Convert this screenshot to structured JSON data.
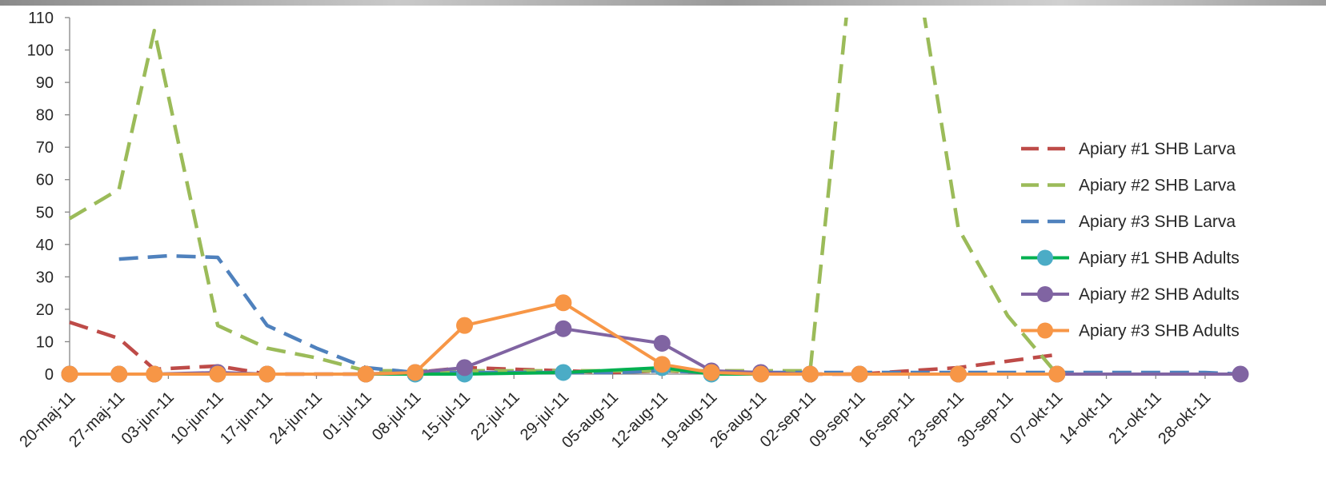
{
  "chart_data": {
    "type": "line",
    "title": "",
    "xlabel": "",
    "ylabel": "",
    "ylim": [
      0,
      110
    ],
    "yticks": [
      "0",
      "10",
      "20",
      "30",
      "40",
      "50",
      "60",
      "70",
      "80",
      "90",
      "100",
      "110"
    ],
    "xlim": [
      "2011-05-20",
      "2011-11-02"
    ],
    "xticks": [
      {
        "date": "2011-05-20",
        "label": "20-maj-11"
      },
      {
        "date": "2011-05-27",
        "label": "27-maj-11"
      },
      {
        "date": "2011-06-03",
        "label": "03-jun-11"
      },
      {
        "date": "2011-06-10",
        "label": "10-jun-11"
      },
      {
        "date": "2011-06-17",
        "label": "17-jun-11"
      },
      {
        "date": "2011-06-24",
        "label": "24-jun-11"
      },
      {
        "date": "2011-07-01",
        "label": "01-jul-11"
      },
      {
        "date": "2011-07-08",
        "label": "08-jul-11"
      },
      {
        "date": "2011-07-15",
        "label": "15-jul-11"
      },
      {
        "date": "2011-07-22",
        "label": "22-jul-11"
      },
      {
        "date": "2011-07-29",
        "label": "29-jul-11"
      },
      {
        "date": "2011-08-05",
        "label": "05-aug-11"
      },
      {
        "date": "2011-08-12",
        "label": "12-aug-11"
      },
      {
        "date": "2011-08-19",
        "label": "19-aug-11"
      },
      {
        "date": "2011-08-26",
        "label": "26-aug-11"
      },
      {
        "date": "2011-09-02",
        "label": "02-sep-11"
      },
      {
        "date": "2011-09-09",
        "label": "09-sep-11"
      },
      {
        "date": "2011-09-16",
        "label": "16-sep-11"
      },
      {
        "date": "2011-09-23",
        "label": "23-sep-11"
      },
      {
        "date": "2011-09-30",
        "label": "30-sep-11"
      },
      {
        "date": "2011-10-07",
        "label": "07-okt-11"
      },
      {
        "date": "2011-10-14",
        "label": "14-okt-11"
      },
      {
        "date": "2011-10-21",
        "label": "21-okt-11"
      },
      {
        "date": "2011-10-28",
        "label": "28-okt-11"
      }
    ],
    "grid": false,
    "legend_position": "right",
    "series": [
      {
        "name": "Apiary #1 SHB Larva",
        "color": "#be4b48",
        "style": "dashed",
        "markers": false,
        "points": [
          {
            "x": "2011-05-20",
            "y": 16
          },
          {
            "x": "2011-05-27",
            "y": 11
          },
          {
            "x": "2011-06-01",
            "y": 1.5
          },
          {
            "x": "2011-06-10",
            "y": 2.5
          },
          {
            "x": "2011-06-17",
            "y": 0
          },
          {
            "x": "2011-07-01",
            "y": 0
          },
          {
            "x": "2011-07-08",
            "y": 0.5
          },
          {
            "x": "2011-07-15",
            "y": 2
          },
          {
            "x": "2011-07-29",
            "y": 1
          },
          {
            "x": "2011-08-05",
            "y": 0.5
          },
          {
            "x": "2011-08-12",
            "y": 1
          },
          {
            "x": "2011-08-19",
            "y": 0.5
          },
          {
            "x": "2011-09-02",
            "y": 0
          },
          {
            "x": "2011-09-09",
            "y": 0
          },
          {
            "x": "2011-09-23",
            "y": 2
          },
          {
            "x": "2011-10-07",
            "y": 6
          }
        ]
      },
      {
        "name": "Apiary #2 SHB Larva",
        "color": "#9bbb59",
        "style": "dashed",
        "markers": false,
        "points": [
          {
            "x": "2011-05-20",
            "y": 48
          },
          {
            "x": "2011-05-27",
            "y": 57
          },
          {
            "x": "2011-06-01",
            "y": 106
          },
          {
            "x": "2011-06-10",
            "y": 15
          },
          {
            "x": "2011-06-17",
            "y": 8
          },
          {
            "x": "2011-06-24",
            "y": 5
          },
          {
            "x": "2011-07-01",
            "y": 1
          },
          {
            "x": "2011-07-08",
            "y": 1
          },
          {
            "x": "2011-07-15",
            "y": 1
          },
          {
            "x": "2011-07-29",
            "y": 1
          },
          {
            "x": "2011-08-05",
            "y": 1
          },
          {
            "x": "2011-08-12",
            "y": 1
          },
          {
            "x": "2011-08-19",
            "y": 1
          },
          {
            "x": "2011-08-26",
            "y": 1
          },
          {
            "x": "2011-09-02",
            "y": 1
          },
          {
            "x": "2011-09-09",
            "y": 150
          },
          {
            "x": "2011-09-16",
            "y": 140
          },
          {
            "x": "2011-09-23",
            "y": 45
          },
          {
            "x": "2011-09-30",
            "y": 18
          },
          {
            "x": "2011-10-07",
            "y": 0
          }
        ]
      },
      {
        "name": "Apiary #3 SHB Larva",
        "color": "#4f81bd",
        "style": "dashed",
        "markers": false,
        "points": [
          {
            "x": "2011-05-27",
            "y": 35.5
          },
          {
            "x": "2011-06-03",
            "y": 36.5
          },
          {
            "x": "2011-06-10",
            "y": 36
          },
          {
            "x": "2011-06-17",
            "y": 15
          },
          {
            "x": "2011-06-24",
            "y": 8
          },
          {
            "x": "2011-07-01",
            "y": 2
          },
          {
            "x": "2011-07-08",
            "y": 0.5
          },
          {
            "x": "2011-07-15",
            "y": 0.5
          },
          {
            "x": "2011-07-29",
            "y": 0.5
          },
          {
            "x": "2011-08-05",
            "y": 0.5
          },
          {
            "x": "2011-08-12",
            "y": 1
          },
          {
            "x": "2011-08-19",
            "y": 0.5
          },
          {
            "x": "2011-10-07",
            "y": 0.5
          },
          {
            "x": "2011-10-28",
            "y": 0.5
          },
          {
            "x": "2011-11-02",
            "y": 0
          }
        ]
      },
      {
        "name": "Apiary #1 SHB Adults",
        "color": "#00b050",
        "marker_color": "#4bacc6",
        "style": "solid",
        "markers": true,
        "points": [
          {
            "x": "2011-05-20",
            "y": 0
          },
          {
            "x": "2011-05-27",
            "y": 0
          },
          {
            "x": "2011-06-01",
            "y": 0
          },
          {
            "x": "2011-06-10",
            "y": 0
          },
          {
            "x": "2011-06-17",
            "y": 0
          },
          {
            "x": "2011-07-01",
            "y": 0
          },
          {
            "x": "2011-07-08",
            "y": 0
          },
          {
            "x": "2011-07-15",
            "y": 0
          },
          {
            "x": "2011-07-29",
            "y": 0.5
          },
          {
            "x": "2011-08-12",
            "y": 2
          },
          {
            "x": "2011-08-19",
            "y": 0
          },
          {
            "x": "2011-08-26",
            "y": 0
          },
          {
            "x": "2011-09-02",
            "y": 0
          },
          {
            "x": "2011-09-09",
            "y": 0
          },
          {
            "x": "2011-09-23",
            "y": 0
          },
          {
            "x": "2011-10-07",
            "y": 0
          }
        ]
      },
      {
        "name": "Apiary #2 SHB Adults",
        "color": "#8064a2",
        "marker_color": "#8064a2",
        "style": "solid",
        "markers": true,
        "points": [
          {
            "x": "2011-05-20",
            "y": 0
          },
          {
            "x": "2011-05-27",
            "y": 0
          },
          {
            "x": "2011-06-01",
            "y": 0
          },
          {
            "x": "2011-06-10",
            "y": 0.5
          },
          {
            "x": "2011-06-17",
            "y": 0
          },
          {
            "x": "2011-07-01",
            "y": 0
          },
          {
            "x": "2011-07-08",
            "y": 0.5
          },
          {
            "x": "2011-07-15",
            "y": 2
          },
          {
            "x": "2011-07-29",
            "y": 14
          },
          {
            "x": "2011-08-12",
            "y": 9.5
          },
          {
            "x": "2011-08-19",
            "y": 1
          },
          {
            "x": "2011-08-26",
            "y": 0.5
          },
          {
            "x": "2011-09-02",
            "y": 0
          },
          {
            "x": "2011-09-09",
            "y": 0
          },
          {
            "x": "2011-09-23",
            "y": 0
          },
          {
            "x": "2011-10-07",
            "y": 0
          },
          {
            "x": "2011-11-02",
            "y": 0
          }
        ]
      },
      {
        "name": "Apiary #3 SHB Adults",
        "color": "#f79646",
        "marker_color": "#f79646",
        "style": "solid",
        "markers": true,
        "points": [
          {
            "x": "2011-05-20",
            "y": 0
          },
          {
            "x": "2011-05-27",
            "y": 0
          },
          {
            "x": "2011-06-01",
            "y": 0
          },
          {
            "x": "2011-06-10",
            "y": 0
          },
          {
            "x": "2011-06-17",
            "y": 0
          },
          {
            "x": "2011-07-01",
            "y": 0
          },
          {
            "x": "2011-07-08",
            "y": 0.5
          },
          {
            "x": "2011-07-15",
            "y": 15
          },
          {
            "x": "2011-07-29",
            "y": 22
          },
          {
            "x": "2011-08-12",
            "y": 3
          },
          {
            "x": "2011-08-19",
            "y": 0.5
          },
          {
            "x": "2011-08-26",
            "y": 0
          },
          {
            "x": "2011-09-02",
            "y": 0
          },
          {
            "x": "2011-09-09",
            "y": 0
          },
          {
            "x": "2011-09-23",
            "y": 0
          },
          {
            "x": "2011-10-07",
            "y": 0
          }
        ]
      }
    ]
  }
}
